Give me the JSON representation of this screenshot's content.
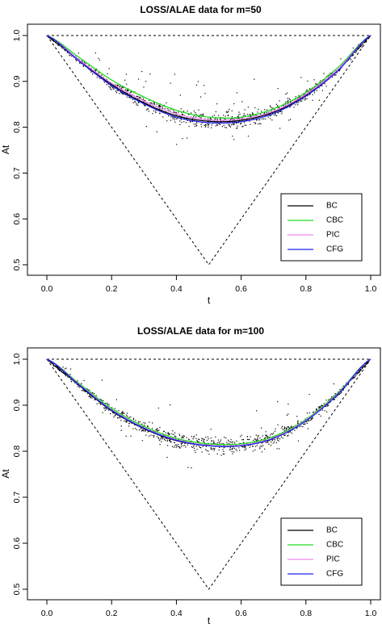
{
  "chart_data": [
    {
      "type": "line",
      "title": "LOSS/ALAE data for m=50",
      "xlabel": "t",
      "ylabel": "At",
      "xlim": [
        0,
        1
      ],
      "ylim": [
        0.5,
        1.0
      ],
      "x_ticks": [
        "0.0",
        "0.2",
        "0.4",
        "0.6",
        "0.8",
        "1.0"
      ],
      "y_ticks": [
        "0.5",
        "0.6",
        "0.7",
        "0.8",
        "0.9",
        "1.0"
      ],
      "legend_position": "bottom-right",
      "bounds": {
        "upper": {
          "x": [
            0,
            1
          ],
          "y": [
            1.0,
            1.0
          ],
          "style": "dashed"
        },
        "lower": {
          "x": [
            0,
            0.5,
            1
          ],
          "y": [
            1.0,
            0.5,
            1.0
          ],
          "style": "dashed"
        }
      },
      "series": [
        {
          "name": "BC",
          "color": "#000000",
          "x": [
            0,
            0.1,
            0.2,
            0.3,
            0.4,
            0.5,
            0.6,
            0.7,
            0.8,
            0.9,
            1.0
          ],
          "y": [
            1.0,
            0.945,
            0.893,
            0.853,
            0.825,
            0.813,
            0.815,
            0.833,
            0.87,
            0.925,
            1.0
          ]
        },
        {
          "name": "CBC",
          "color": "#22dd22",
          "x": [
            0,
            0.1,
            0.2,
            0.3,
            0.4,
            0.5,
            0.6,
            0.7,
            0.8,
            0.9,
            1.0
          ],
          "y": [
            1.0,
            0.952,
            0.903,
            0.866,
            0.837,
            0.822,
            0.822,
            0.84,
            0.876,
            0.931,
            1.0
          ]
        },
        {
          "name": "PIC",
          "color": "#ee88ee",
          "x": [
            0,
            0.1,
            0.2,
            0.3,
            0.4,
            0.5,
            0.6,
            0.7,
            0.8,
            0.9,
            1.0
          ],
          "y": [
            1.0,
            0.947,
            0.896,
            0.857,
            0.829,
            0.816,
            0.818,
            0.835,
            0.872,
            0.927,
            1.0
          ]
        },
        {
          "name": "CFG",
          "color": "#2222ee",
          "x": [
            0,
            0.1,
            0.2,
            0.3,
            0.4,
            0.5,
            0.6,
            0.7,
            0.8,
            0.9,
            1.0
          ],
          "y": [
            1.0,
            0.944,
            0.891,
            0.851,
            0.822,
            0.81,
            0.812,
            0.83,
            0.868,
            0.924,
            1.0
          ]
        }
      ]
    },
    {
      "type": "line",
      "title": "LOSS/ALAE data for m=100",
      "xlabel": "t",
      "ylabel": "At",
      "xlim": [
        0,
        1
      ],
      "ylim": [
        0.5,
        1.0
      ],
      "x_ticks": [
        "0.0",
        "0.2",
        "0.4",
        "0.6",
        "0.8",
        "1.0"
      ],
      "y_ticks": [
        "0.5",
        "0.6",
        "0.7",
        "0.8",
        "0.9",
        "1.0"
      ],
      "legend_position": "bottom-right",
      "bounds": {
        "upper": {
          "x": [
            0,
            1
          ],
          "y": [
            1.0,
            1.0
          ],
          "style": "dashed"
        },
        "lower": {
          "x": [
            0,
            0.5,
            1
          ],
          "y": [
            1.0,
            0.5,
            1.0
          ],
          "style": "dashed"
        }
      },
      "series": [
        {
          "name": "BC",
          "color": "#000000",
          "x": [
            0,
            0.1,
            0.2,
            0.3,
            0.4,
            0.5,
            0.6,
            0.7,
            0.8,
            0.9,
            1.0
          ],
          "y": [
            1.0,
            0.943,
            0.888,
            0.849,
            0.823,
            0.812,
            0.812,
            0.828,
            0.866,
            0.925,
            1.0
          ]
        },
        {
          "name": "CBC",
          "color": "#22dd22",
          "x": [
            0,
            0.1,
            0.2,
            0.3,
            0.4,
            0.5,
            0.6,
            0.7,
            0.8,
            0.9,
            1.0
          ],
          "y": [
            1.0,
            0.947,
            0.893,
            0.854,
            0.828,
            0.816,
            0.816,
            0.832,
            0.869,
            0.928,
            1.0
          ]
        },
        {
          "name": "PIC",
          "color": "#ee88ee",
          "x": [
            0,
            0.1,
            0.2,
            0.3,
            0.4,
            0.5,
            0.6,
            0.7,
            0.8,
            0.9,
            1.0
          ],
          "y": [
            1.0,
            0.945,
            0.89,
            0.851,
            0.825,
            0.813,
            0.813,
            0.829,
            0.867,
            0.926,
            1.0
          ]
        },
        {
          "name": "CFG",
          "color": "#2222ee",
          "x": [
            0,
            0.1,
            0.2,
            0.3,
            0.4,
            0.5,
            0.6,
            0.7,
            0.8,
            0.9,
            1.0
          ],
          "y": [
            1.0,
            0.944,
            0.889,
            0.85,
            0.824,
            0.812,
            0.812,
            0.828,
            0.866,
            0.925,
            1.0
          ]
        }
      ]
    }
  ]
}
